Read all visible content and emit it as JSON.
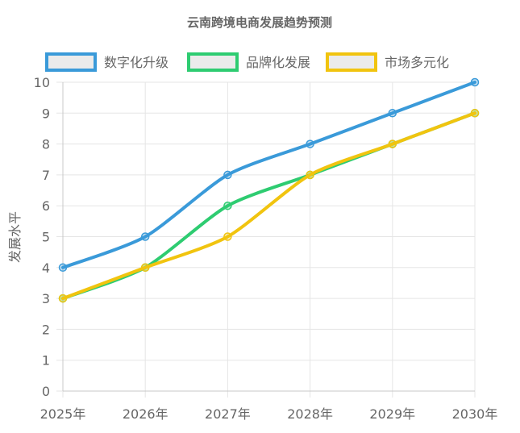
{
  "chart_data": {
    "type": "line",
    "title": "云南跨境电商发展趋势预测",
    "xlabel": "",
    "ylabel": "发展水平",
    "categories": [
      "2025年",
      "2026年",
      "2027年",
      "2028年",
      "2029年",
      "2030年"
    ],
    "ylim": [
      0,
      10
    ],
    "yticks": [
      0,
      1,
      2,
      3,
      4,
      5,
      6,
      7,
      8,
      9,
      10
    ],
    "grid": true,
    "legend_position": "top-center",
    "series": [
      {
        "name": "数字化升级",
        "color": "#3a9ad9",
        "values": [
          4,
          5,
          7,
          8,
          9,
          10
        ]
      },
      {
        "name": "品牌化发展",
        "color": "#2ecc71",
        "values": [
          3,
          4,
          6,
          7,
          8,
          9
        ]
      },
      {
        "name": "市场多元化",
        "color": "#f1c40f",
        "values": [
          3,
          4,
          5,
          7,
          8,
          9
        ]
      }
    ]
  }
}
